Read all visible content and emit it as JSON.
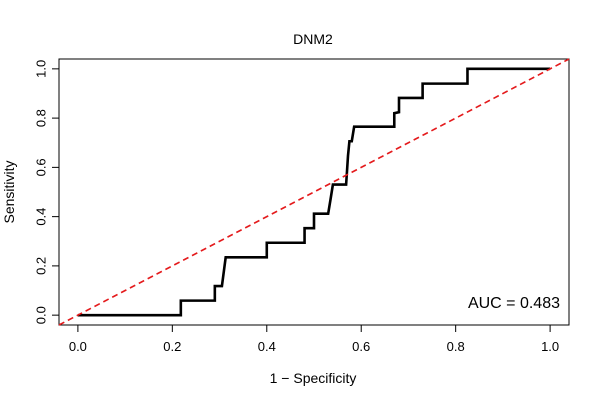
{
  "chart_data": {
    "type": "line",
    "title": "DNM2",
    "xlabel": "1 − Specificity",
    "ylabel": "Sensitivity",
    "xlim": [
      -0.04,
      1.04
    ],
    "ylim": [
      -0.04,
      1.04
    ],
    "x_ticks": [
      0.0,
      0.2,
      0.4,
      0.6,
      0.8,
      1.0
    ],
    "x_tick_labels": [
      "0.0",
      "0.2",
      "0.4",
      "0.6",
      "0.8",
      "1.0"
    ],
    "y_ticks": [
      0.0,
      0.2,
      0.4,
      0.6,
      0.8,
      1.0
    ],
    "y_tick_labels": [
      "0.0",
      "0.2",
      "0.4",
      "0.6",
      "0.8",
      "1.0"
    ],
    "grid": false,
    "annotation": "AUC = 0.483",
    "series": [
      {
        "color": "#000000",
        "style": "solid",
        "points": [
          [
            0.0,
            0.0
          ],
          [
            0.218,
            0.0
          ],
          [
            0.218,
            0.059
          ],
          [
            0.29,
            0.059
          ],
          [
            0.29,
            0.118
          ],
          [
            0.305,
            0.118
          ],
          [
            0.313,
            0.235
          ],
          [
            0.4,
            0.235
          ],
          [
            0.4,
            0.294
          ],
          [
            0.48,
            0.294
          ],
          [
            0.48,
            0.353
          ],
          [
            0.5,
            0.353
          ],
          [
            0.5,
            0.412
          ],
          [
            0.53,
            0.412
          ],
          [
            0.535,
            0.47
          ],
          [
            0.54,
            0.53
          ],
          [
            0.568,
            0.53
          ],
          [
            0.57,
            0.588
          ],
          [
            0.572,
            0.647
          ],
          [
            0.575,
            0.706
          ],
          [
            0.58,
            0.706
          ],
          [
            0.585,
            0.765
          ],
          [
            0.67,
            0.765
          ],
          [
            0.67,
            0.82
          ],
          [
            0.68,
            0.824
          ],
          [
            0.68,
            0.882
          ],
          [
            0.73,
            0.882
          ],
          [
            0.73,
            0.94
          ],
          [
            0.825,
            0.94
          ],
          [
            0.825,
            1.0
          ],
          [
            1.0,
            1.0
          ]
        ]
      },
      {
        "color": "#e41a1c",
        "style": "dashed",
        "points": [
          [
            -0.04,
            -0.04
          ],
          [
            1.04,
            1.04
          ]
        ]
      }
    ]
  }
}
